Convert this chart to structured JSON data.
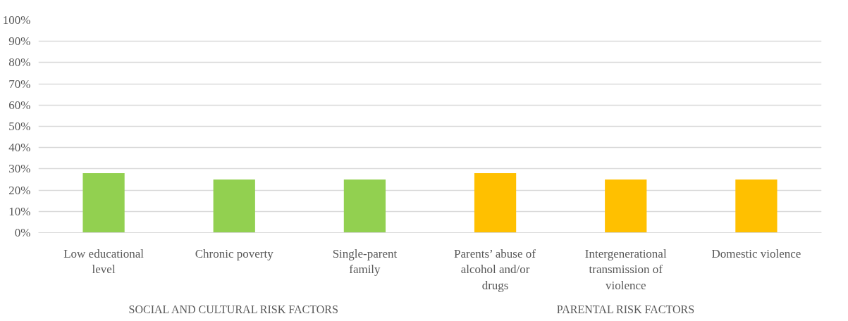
{
  "chart_data": {
    "type": "bar",
    "categories": [
      "Low educational\nlevel",
      "Chronic poverty",
      "Single-parent\nfamily",
      "Parents’ abuse of\nalcohol and/or\ndrugs",
      "Intergenerational\ntransmission of\nviolence",
      "Domestic violence"
    ],
    "values": [
      28,
      25,
      25,
      28,
      25,
      25
    ],
    "colors": [
      "#92d050",
      "#92d050",
      "#92d050",
      "#ffc000",
      "#ffc000",
      "#ffc000"
    ],
    "ylim": [
      0,
      100
    ],
    "yticks": [
      {
        "value": 0,
        "label": "0%"
      },
      {
        "value": 10,
        "label": "10%"
      },
      {
        "value": 20,
        "label": "20%"
      },
      {
        "value": 30,
        "label": "30%"
      },
      {
        "value": 40,
        "label": "40%"
      },
      {
        "value": 50,
        "label": "50%"
      },
      {
        "value": 60,
        "label": "60%"
      },
      {
        "value": 70,
        "label": "70%"
      },
      {
        "value": 80,
        "label": "80%"
      },
      {
        "value": 90,
        "label": "90%"
      },
      {
        "value": 100,
        "label": "100%"
      }
    ],
    "annotations": [
      "SOCIAL AND CULTURAL RISK FACTORS",
      "PARENTAL RISK FACTORS"
    ],
    "grid": "y"
  }
}
